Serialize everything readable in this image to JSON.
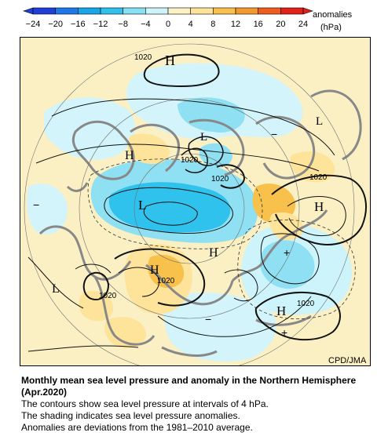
{
  "colorbar": {
    "ticks": [
      "−24",
      "−20",
      "−16",
      "−12",
      "−8",
      "−4",
      "0",
      "4",
      "8",
      "12",
      "16",
      "20",
      "24"
    ],
    "colors": [
      "#1f3fd8",
      "#1e78e8",
      "#18a6e6",
      "#2fc1ec",
      "#86dff2",
      "#cdf4fa",
      "#fdf2c6",
      "#fde49a",
      "#f7c14c",
      "#f39a2e",
      "#ee5d1e",
      "#e0221a"
    ],
    "unit_label": "anomalies",
    "unit": "(hPa)"
  },
  "map": {
    "pressure_centers": {
      "h_north": "H",
      "h_west": "H",
      "h_east": "H",
      "h_center": "H",
      "h_south": "H",
      "h_southeast": "H",
      "l_polar": "L",
      "l_north": "L",
      "l_southwest": "L",
      "l_northeast": "L"
    },
    "contour_labels": {
      "c_1020_north": "1020",
      "c_1020_upper": "1020",
      "c_1020_mid": "1020",
      "c_1020_east": "1020",
      "c_1020_center": "1020",
      "c_1020_southeast": "1020",
      "c_1020_southwest": "1020"
    },
    "anomaly_signs": {
      "minus_west": "−",
      "minus_east": "−",
      "minus_south": "−",
      "plus_south": "+",
      "plus_center": "+"
    },
    "credit": "CPD/JMA"
  },
  "caption": {
    "title": "Monthly mean sea level pressure and anomaly in the Northern Hemisphere (Apr.2020)",
    "line1": "The contours show sea level pressure at intervals of 4 hPa.",
    "line2": "The shading indicates sea level pressure anomalies.",
    "line3": "Anomalies are deviations from the 1981–2010 average."
  }
}
